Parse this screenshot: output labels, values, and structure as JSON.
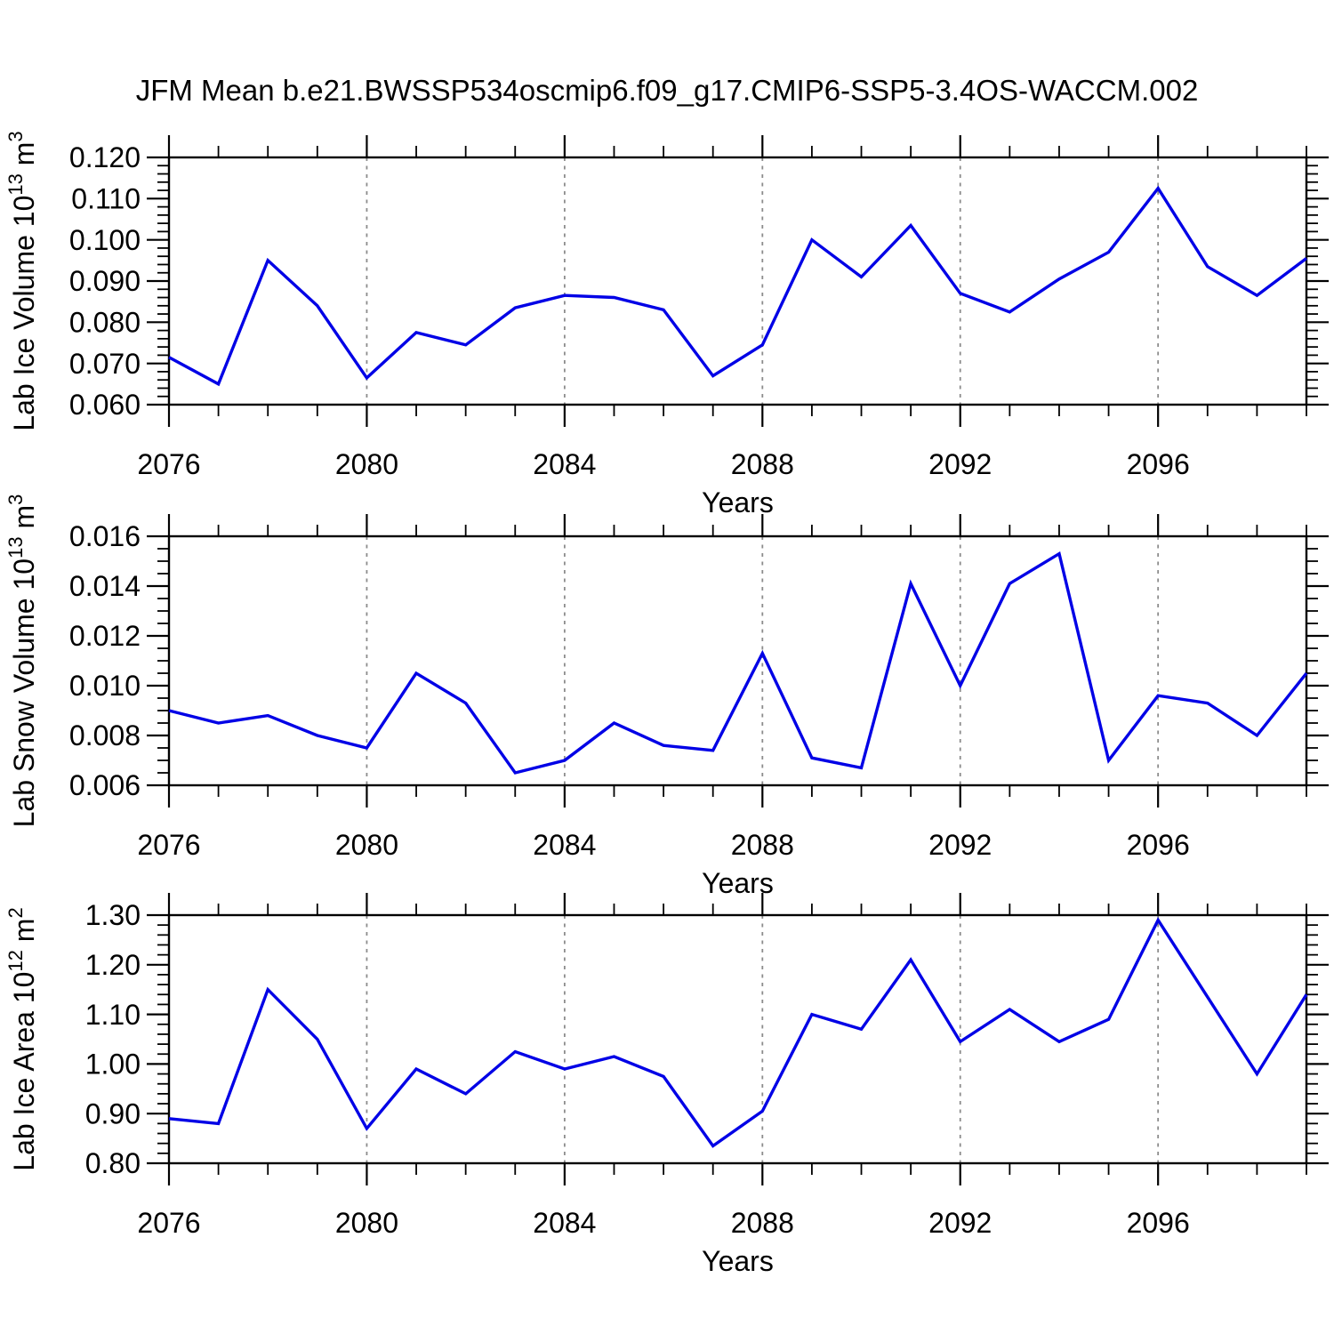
{
  "title": "JFM Mean b.e21.BWSSP534oscmip6.f09_g17.CMIP6-SSP5-3.4OS-WACCM.002",
  "colors": {
    "line": "#0000e6",
    "axis": "#000000",
    "gridline": "#8c8c8c",
    "background": "#ffffff"
  },
  "chart_data": [
    {
      "id": "ice-volume",
      "type": "line",
      "ylabel": "Lab Ice Volume 10^13 m^3",
      "xlabel": "Years",
      "x": [
        2076,
        2077,
        2078,
        2079,
        2080,
        2081,
        2082,
        2083,
        2084,
        2085,
        2086,
        2087,
        2088,
        2089,
        2090,
        2091,
        2092,
        2093,
        2094,
        2095,
        2096,
        2097,
        2098,
        2099
      ],
      "values": [
        0.0715,
        0.065,
        0.095,
        0.084,
        0.0665,
        0.0775,
        0.0745,
        0.0835,
        0.0865,
        0.086,
        0.083,
        0.067,
        0.0745,
        0.1,
        0.091,
        0.1035,
        0.087,
        0.0825,
        0.0905,
        0.097,
        0.1125,
        0.0935,
        0.0865,
        0.0955
      ],
      "xlim": [
        2076,
        2099
      ],
      "ylim": [
        0.06,
        0.12
      ],
      "xticks": [
        2076,
        2080,
        2084,
        2088,
        2092,
        2096
      ],
      "x_minor_step": 1,
      "yticks": [
        0.06,
        0.07,
        0.08,
        0.09,
        0.1,
        0.11,
        0.12
      ],
      "y_minor_step": 0.002,
      "ytick_decimals": 3,
      "grid_x_dashed": [
        2080,
        2084,
        2088,
        2092,
        2096
      ],
      "legend": "none"
    },
    {
      "id": "snow-volume",
      "type": "line",
      "ylabel": "Lab Snow Volume 10^13 m^3",
      "xlabel": "Years",
      "x": [
        2076,
        2077,
        2078,
        2079,
        2080,
        2081,
        2082,
        2083,
        2084,
        2085,
        2086,
        2087,
        2088,
        2089,
        2090,
        2091,
        2092,
        2093,
        2094,
        2095,
        2096,
        2097,
        2098,
        2099
      ],
      "values": [
        0.009,
        0.0085,
        0.0088,
        0.008,
        0.0075,
        0.0105,
        0.0093,
        0.0065,
        0.007,
        0.0085,
        0.0076,
        0.0074,
        0.0113,
        0.0071,
        0.0067,
        0.0141,
        0.01,
        0.0141,
        0.0153,
        0.007,
        0.0096,
        0.0093,
        0.008,
        0.0105
      ],
      "xlim": [
        2076,
        2099
      ],
      "ylim": [
        0.006,
        0.016
      ],
      "xticks": [
        2076,
        2080,
        2084,
        2088,
        2092,
        2096
      ],
      "x_minor_step": 1,
      "yticks": [
        0.006,
        0.008,
        0.01,
        0.012,
        0.014,
        0.016
      ],
      "y_minor_step": 0.0005,
      "ytick_decimals": 3,
      "grid_x_dashed": [
        2080,
        2084,
        2088,
        2092,
        2096
      ],
      "legend": "none"
    },
    {
      "id": "ice-area",
      "type": "line",
      "ylabel": "Lab Ice Area 10^12 m^2",
      "xlabel": "Years",
      "x": [
        2076,
        2077,
        2078,
        2079,
        2080,
        2081,
        2082,
        2083,
        2084,
        2085,
        2086,
        2087,
        2088,
        2089,
        2090,
        2091,
        2092,
        2093,
        2094,
        2095,
        2096,
        2097,
        2098,
        2099
      ],
      "values": [
        0.89,
        0.88,
        1.15,
        1.05,
        0.87,
        0.99,
        0.94,
        1.025,
        0.99,
        1.015,
        0.975,
        0.835,
        0.905,
        1.1,
        1.07,
        1.21,
        1.045,
        1.11,
        1.045,
        1.09,
        1.29,
        1.135,
        0.98,
        1.14
      ],
      "xlim": [
        2076,
        2099
      ],
      "ylim": [
        0.8,
        1.3
      ],
      "xticks": [
        2076,
        2080,
        2084,
        2088,
        2092,
        2096
      ],
      "x_minor_step": 1,
      "yticks": [
        0.8,
        0.9,
        1.0,
        1.1,
        1.2,
        1.3
      ],
      "y_minor_step": 0.02,
      "ytick_decimals": 2,
      "grid_x_dashed": [
        2080,
        2084,
        2088,
        2092,
        2096
      ],
      "legend": "none"
    }
  ]
}
